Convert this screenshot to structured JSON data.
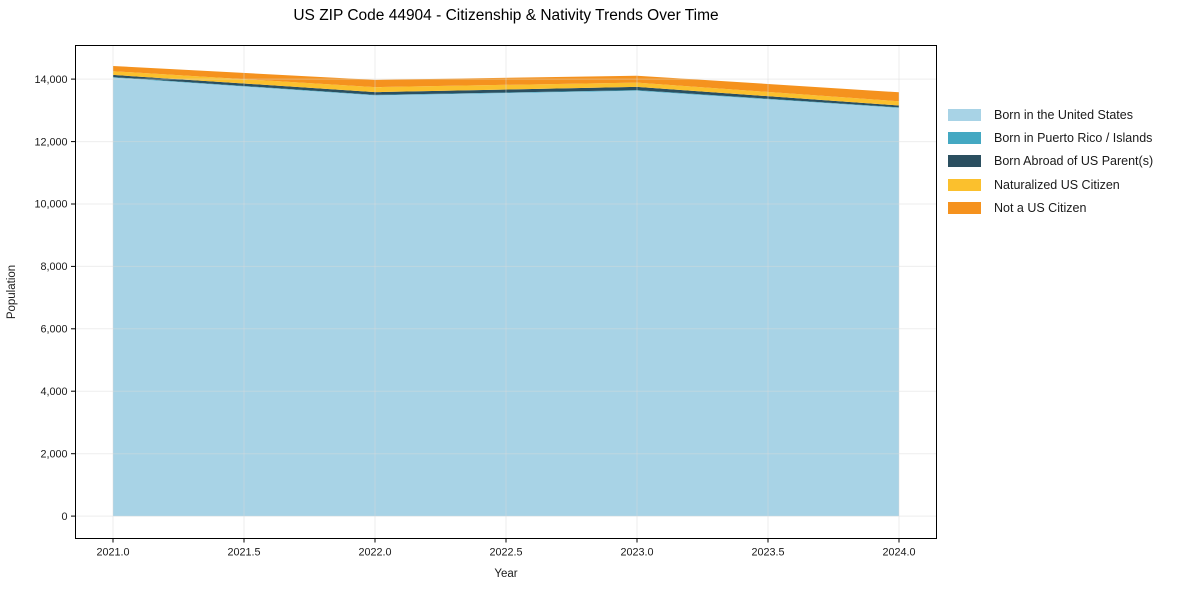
{
  "chart_data": {
    "type": "area",
    "stacked": true,
    "title": "US ZIP Code 44904 - Citizenship & Nativity Trends Over Time",
    "xlabel": "Year",
    "ylabel": "Population",
    "x": [
      2021,
      2022,
      2023,
      2024
    ],
    "series": [
      {
        "name": "Born in the United States",
        "color": "#A8D3E6",
        "values": [
          14050,
          13480,
          13630,
          13080
        ]
      },
      {
        "name": "Born in Puerto Rico / Islands",
        "color": "#44A8C2",
        "values": [
          15,
          15,
          20,
          15
        ]
      },
      {
        "name": "Born Abroad of US Parent(s)",
        "color": "#2B4F60",
        "values": [
          70,
          90,
          100,
          60
        ]
      },
      {
        "name": "Naturalized US Citizen",
        "color": "#FBC02D",
        "values": [
          120,
          160,
          140,
          135
        ]
      },
      {
        "name": "Not a US Citizen",
        "color": "#F5921E",
        "values": [
          165,
          230,
          220,
          290
        ]
      }
    ],
    "x_ticks": [
      2021.0,
      2021.5,
      2022.0,
      2022.5,
      2023.0,
      2023.5,
      2024.0
    ],
    "x_tick_labels": [
      "2021.0",
      "2021.5",
      "2022.0",
      "2022.5",
      "2023.0",
      "2023.5",
      "2024.0"
    ],
    "y_ticks": [
      0,
      2000,
      4000,
      6000,
      8000,
      10000,
      12000,
      14000
    ],
    "y_tick_labels": [
      "0",
      "2,000",
      "4,000",
      "6,000",
      "8,000",
      "10,000",
      "12,000",
      "14,000"
    ],
    "xlim": [
      2020.857,
      2024.143
    ],
    "ylim": [
      -718,
      15078
    ],
    "grid": true,
    "legend_position": "outside-right",
    "colors": {
      "background": "#FFFFFF",
      "gridline": "#E9E9E9",
      "spine": "#000000",
      "text": "#1A1A1A"
    }
  }
}
